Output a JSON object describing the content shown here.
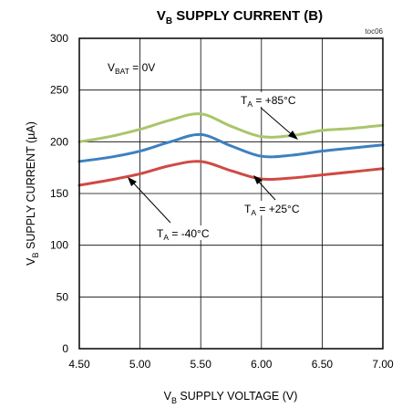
{
  "chart_data": {
    "type": "line",
    "title": {
      "main": "V",
      "sub": "B",
      "rest": " SUPPLY CURRENT (B)"
    },
    "tag": "toc06",
    "xlabel": {
      "main": "V",
      "sub": "B",
      "rest": " SUPPLY VOLTAGE (V)"
    },
    "ylabel": {
      "main": "V",
      "sub": "B",
      "rest": " SUPPLY CURRENT  (µA)"
    },
    "xlim": [
      4.5,
      7.0
    ],
    "ylim": [
      0,
      300
    ],
    "x_ticks": [
      "4.50",
      "5.00",
      "5.50",
      "6.00",
      "6.50",
      "7.00"
    ],
    "y_ticks": [
      "0",
      "50",
      "100",
      "150",
      "200",
      "250",
      "300"
    ],
    "grid": true,
    "condition": {
      "main": "V",
      "sub": "BAT",
      "rest": " = 0V"
    },
    "series": [
      {
        "name": {
          "main": "T",
          "sub": "A",
          "rest": " = +85°C"
        },
        "color": "#a9c66b",
        "points": [
          [
            4.5,
            200
          ],
          [
            4.75,
            205
          ],
          [
            5.0,
            212
          ],
          [
            5.25,
            221
          ],
          [
            5.5,
            227
          ],
          [
            5.75,
            215
          ],
          [
            6.0,
            205
          ],
          [
            6.25,
            206
          ],
          [
            6.5,
            211
          ],
          [
            6.75,
            213
          ],
          [
            7.0,
            216
          ]
        ]
      },
      {
        "name": {
          "main": "T",
          "sub": "A",
          "rest": " = +25°C"
        },
        "color": "#3c81c0",
        "points": [
          [
            4.5,
            181
          ],
          [
            4.75,
            185
          ],
          [
            5.0,
            191
          ],
          [
            5.25,
            200
          ],
          [
            5.5,
            207
          ],
          [
            5.75,
            196
          ],
          [
            6.0,
            186
          ],
          [
            6.25,
            187
          ],
          [
            6.5,
            191
          ],
          [
            6.75,
            194
          ],
          [
            7.0,
            197
          ]
        ]
      },
      {
        "name": {
          "main": "T",
          "sub": "A",
          "rest": " = -40°C"
        },
        "color": "#cf4a43",
        "points": [
          [
            4.5,
            158
          ],
          [
            4.75,
            163
          ],
          [
            5.0,
            169
          ],
          [
            5.25,
            177
          ],
          [
            5.5,
            181
          ],
          [
            5.75,
            172
          ],
          [
            6.0,
            164
          ],
          [
            6.25,
            165
          ],
          [
            6.5,
            168
          ],
          [
            6.75,
            171
          ],
          [
            7.0,
            174
          ]
        ]
      }
    ]
  }
}
